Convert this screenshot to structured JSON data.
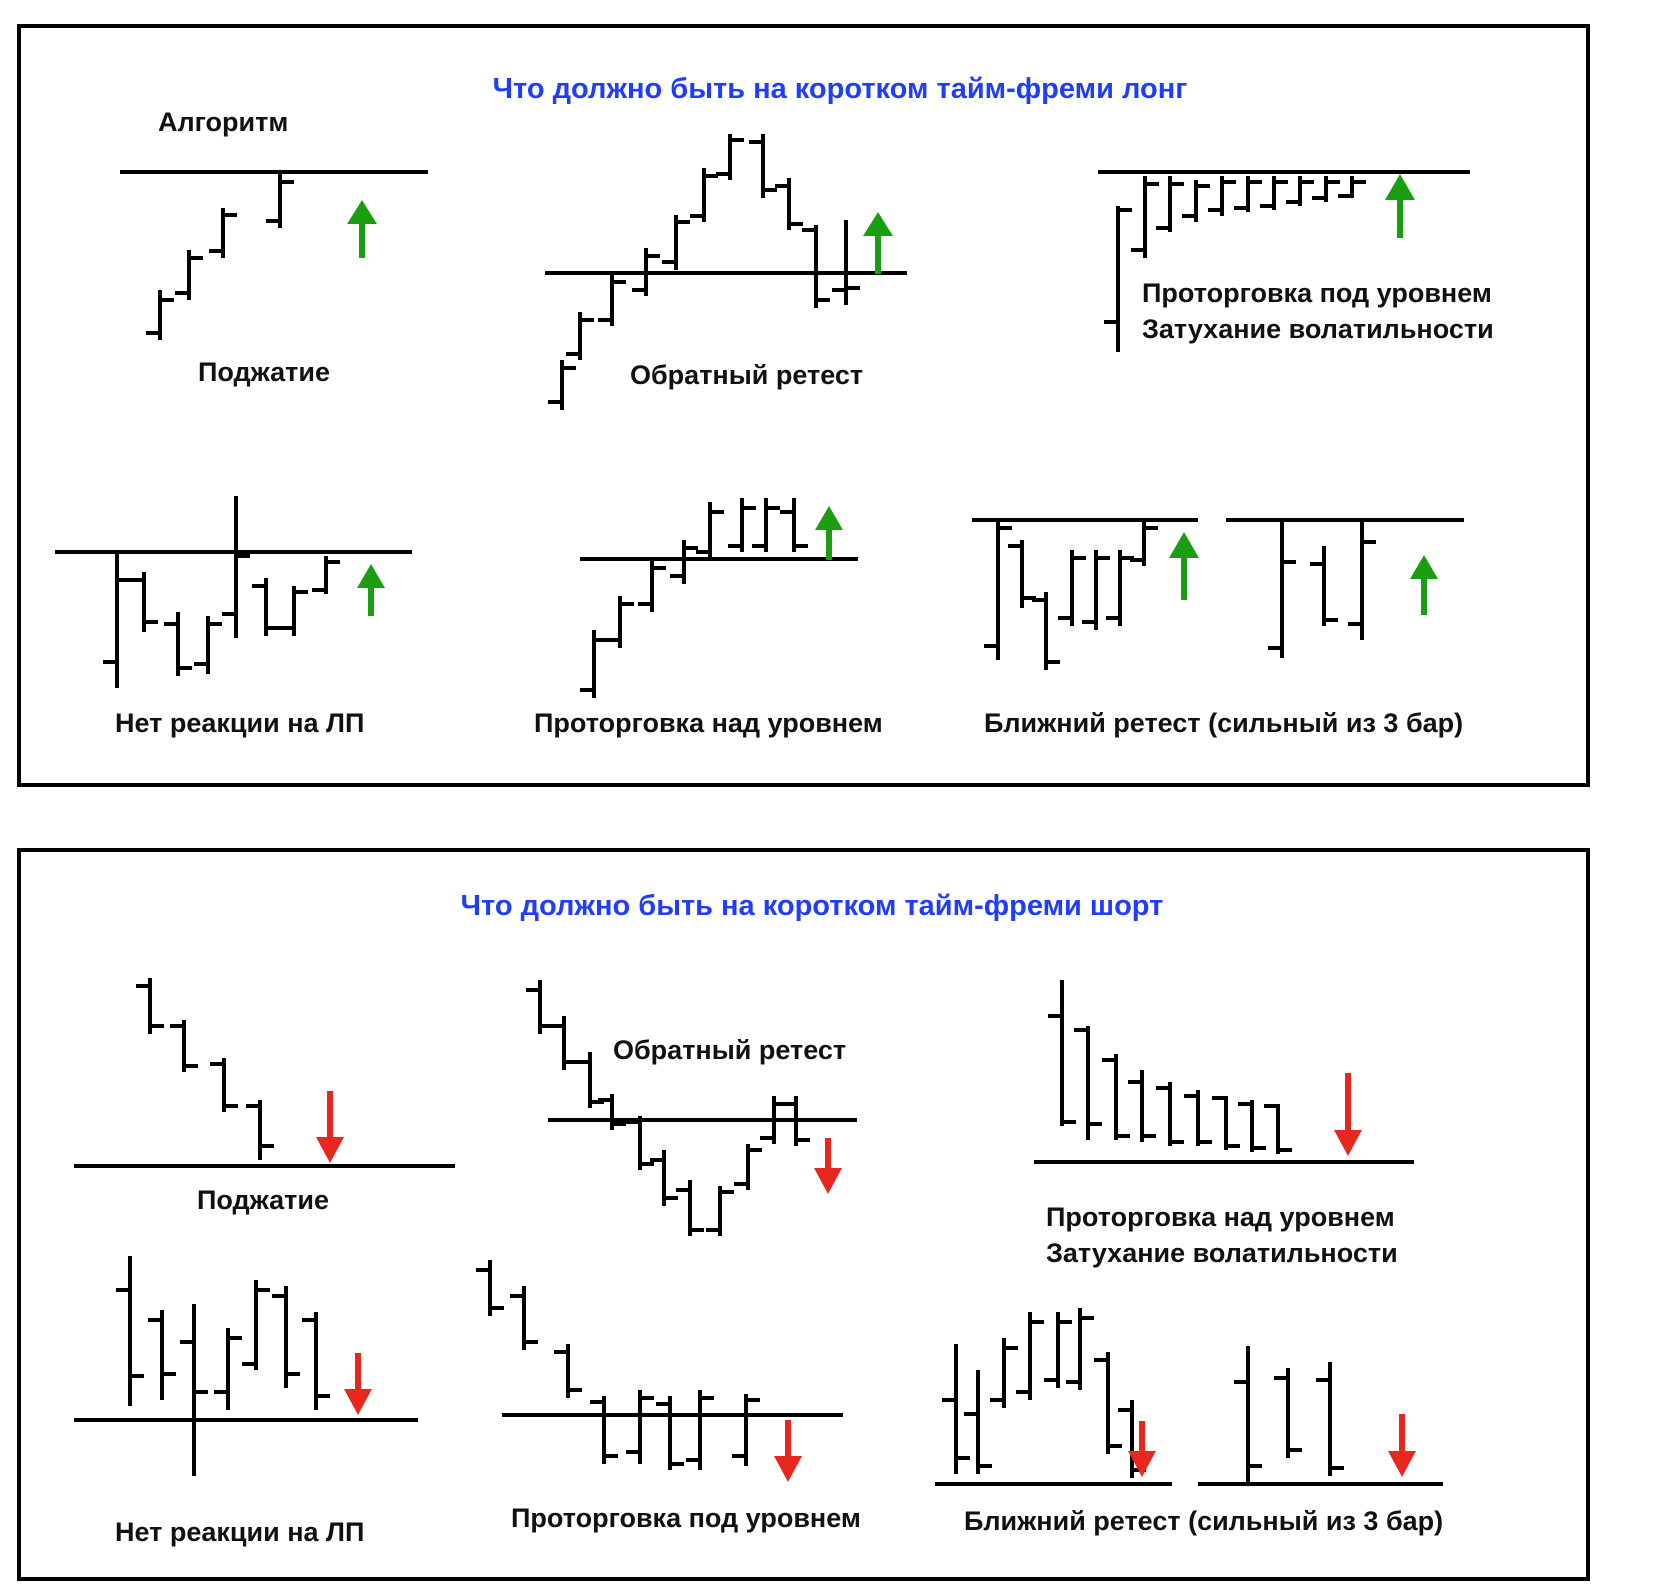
{
  "colors": {
    "title": "#1f3dff",
    "up_arrow": "#1a9e0f",
    "down_arrow": "#e8281e",
    "ink": "#000000"
  },
  "long": {
    "title": "Что должно быть на коротком тайм-фреми лонг",
    "algorithm_label": "Алгоритм",
    "patterns": {
      "squeeze": "Поджатие",
      "reverse_retest": "Обратный ретест",
      "consolidation_below_line1": "Проторговка под уровнем",
      "consolidation_below_line2": "Затухание волатильности",
      "no_reaction_fb": "Нет реакции на ЛП",
      "consolidation_above": "Проторговка над уровнем",
      "near_retest": "Ближний ретест (сильный из 3 бар)"
    },
    "arrow_icon": "up-arrow-icon"
  },
  "short": {
    "title": "Что должно быть на коротком тайм-фреми шорт",
    "patterns": {
      "squeeze": "Поджатие",
      "reverse_retest": "Обратный ретест",
      "consolidation_above_line1": "Проторговка над уровнем",
      "consolidation_above_line2": "Затухание волатильности",
      "no_reaction_fb": "Нет реакции на ЛП",
      "consolidation_below": "Проторговка под уровнем",
      "near_retest": "Ближний ретест (сильный из 3 бар)"
    },
    "arrow_icon": "down-arrow-icon"
  }
}
